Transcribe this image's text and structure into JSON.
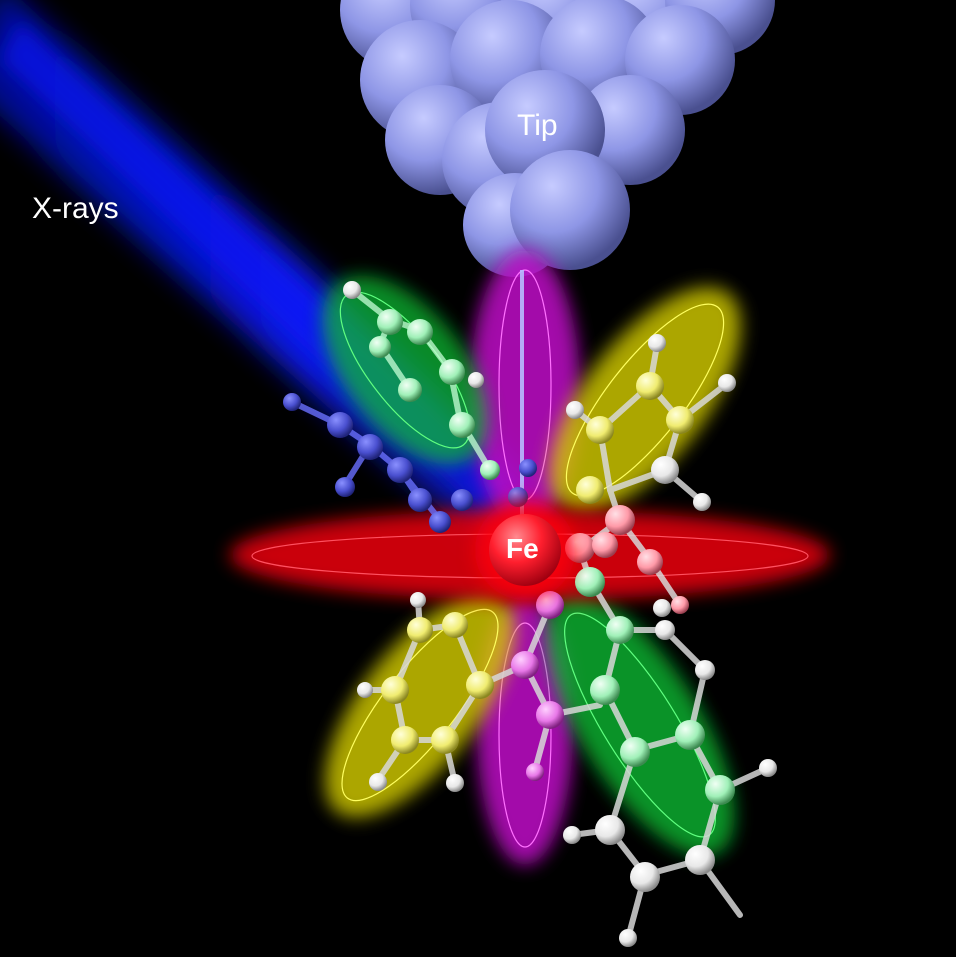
{
  "labels": {
    "xrays": "X-rays",
    "tip": "Tip",
    "fe": "Fe"
  },
  "colors": {
    "background": "#000000",
    "xray_beam": "#0a14ff",
    "tip_atoms": "#8e96e6",
    "fe_atom": "#ff1f2e",
    "orbital_red": "#ff1020",
    "orbital_magenta": "#e020e0",
    "orbital_yellow": "#ffee20",
    "orbital_green": "#20e040",
    "hydrogen": "#f2f2f2",
    "sulfur": "#f5f060",
    "carbon_green": "#a0f0b8",
    "carbon_pink": "#ff9aa8"
  }
}
